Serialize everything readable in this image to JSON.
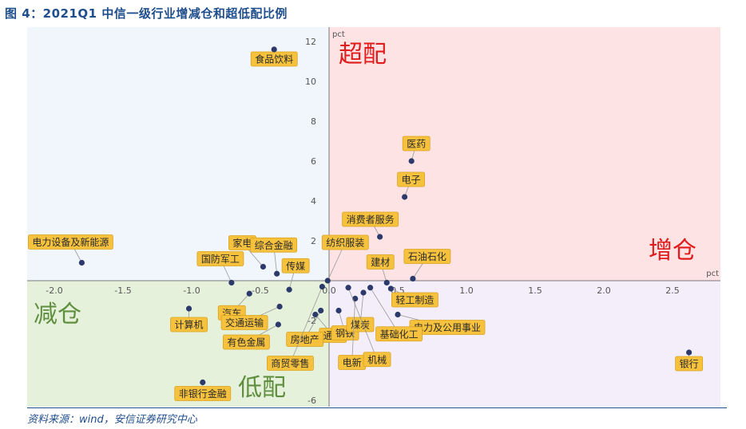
{
  "title": "图 4：2021Q1 中信一级行业增减仓和超低配比例",
  "footer": "资料来源：wind，安信证券研究中心",
  "colors": {
    "quad_top_left": "#f1f6fc",
    "quad_top_right": "#fde3e3",
    "quad_bottom_left": "#e6f1dc",
    "quad_bottom_right": "#f3eefa",
    "point": "#2b3a6b",
    "label_bg": "#f6c23e",
    "label_border": "#d9a21e",
    "quad_tr_text": "#e11b1b",
    "quad_br_text": "#e11b1b",
    "quad_bl_text": "#5f8f3e",
    "quad_bottom_text": "#5f8f3e"
  },
  "chart_data": {
    "type": "scatter",
    "xlim": [
      -2.2,
      2.75
    ],
    "ylim": [
      -6.2,
      12.6
    ],
    "x_ticks": [
      -2.0,
      -1.5,
      -1.0,
      -0.5,
      0.0,
      0.5,
      1.0,
      1.5,
      2.0,
      2.5
    ],
    "x_tick_labels": [
      "-2.0",
      "-1.5",
      "-1.0",
      "-0.5",
      "0.0",
      "0.5",
      "1.0",
      "1.5",
      "2.0",
      "2.5"
    ],
    "y_ticks": [
      -6,
      -4,
      -2,
      0,
      2,
      4,
      6,
      8,
      10,
      12
    ],
    "y_tick_labels": [
      "-6",
      "",
      "-2",
      "0",
      "2",
      "4",
      "6",
      "8",
      "10",
      "12"
    ],
    "x_unit": "pct",
    "y_unit": "pct",
    "grid": false,
    "quadrant_labels": {
      "top_right": "超配",
      "right": "增仓",
      "left": "减仓",
      "bottom": "低配"
    },
    "points": [
      {
        "name": "食品饮料",
        "x": -0.4,
        "y": 11.6
      },
      {
        "name": "医药",
        "x": 0.6,
        "y": 6.0
      },
      {
        "name": "电子",
        "x": 0.55,
        "y": 4.2
      },
      {
        "name": "消费者服务",
        "x": 0.37,
        "y": 2.2
      },
      {
        "name": "电力设备及新能源",
        "x": -1.8,
        "y": 0.9
      },
      {
        "name": "家电",
        "x": -0.48,
        "y": 0.7
      },
      {
        "name": "综合金融",
        "x": -0.38,
        "y": 0.35
      },
      {
        "name": "纺织服装",
        "x": -0.01,
        "y": 0.0
      },
      {
        "name": "国防军工",
        "x": -0.71,
        "y": -0.1
      },
      {
        "name": "传媒",
        "x": -0.29,
        "y": -0.45
      },
      {
        "name": "建材",
        "x": 0.42,
        "y": -0.1
      },
      {
        "name": "石油石化",
        "x": 0.61,
        "y": 0.1
      },
      {
        "name": "轻工制造",
        "x": 0.45,
        "y": -0.4
      },
      {
        "name": "汽车",
        "x": -0.58,
        "y": -0.65
      },
      {
        "name": "计算机",
        "x": -1.02,
        "y": -1.4
      },
      {
        "name": "交通运输",
        "x": -0.36,
        "y": -1.3
      },
      {
        "name": "通信",
        "x": -0.1,
        "y": -1.7
      },
      {
        "name": "有色金属",
        "x": -0.37,
        "y": -2.2
      },
      {
        "name": "房地产",
        "x": -0.06,
        "y": -1.5
      },
      {
        "name": "商贸零售",
        "x": -0.05,
        "y": -0.3
      },
      {
        "name": "钢铁",
        "x": 0.07,
        "y": -1.5
      },
      {
        "name": "煤炭",
        "x": 0.25,
        "y": -0.6
      },
      {
        "name": "电力及公用事业",
        "x": 0.5,
        "y": -1.7
      },
      {
        "name": "基础化工",
        "x": 0.3,
        "y": -0.35
      },
      {
        "name": "电新",
        "x": 0.19,
        "y": -0.9
      },
      {
        "name": "机械",
        "x": 0.14,
        "y": -0.35
      },
      {
        "name": "非银行金融",
        "x": -0.92,
        "y": -5.1
      },
      {
        "name": "银行",
        "x": 2.62,
        "y": -3.6
      }
    ]
  }
}
